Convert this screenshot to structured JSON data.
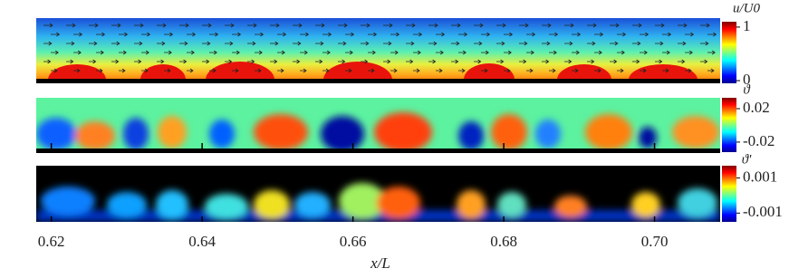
{
  "chart_data": {
    "type": "contour",
    "xlabel": "x/L",
    "xlim": [
      0.618,
      0.7087
    ],
    "xticks": [
      0.62,
      0.64,
      0.66,
      {
        "value": 0.68,
        "label": "0.68"
      },
      {
        "value": 0.7,
        "label": "0.70"
      }
    ],
    "panels": [
      {
        "colorbar_title": "u/U0",
        "clim": [
          -0.05,
          1.1
        ],
        "cticks": [
          1,
          0
        ]
      },
      {
        "colorbar_title": "ϑ",
        "clim": [
          -0.032,
          0.033
        ],
        "cticks": [
          0.02,
          -0.02
        ]
      },
      {
        "colorbar_title": "ϑ'",
        "clim": [
          -0.0015,
          0.0017
        ],
        "cticks": [
          0.001,
          -0.001
        ]
      }
    ]
  }
}
